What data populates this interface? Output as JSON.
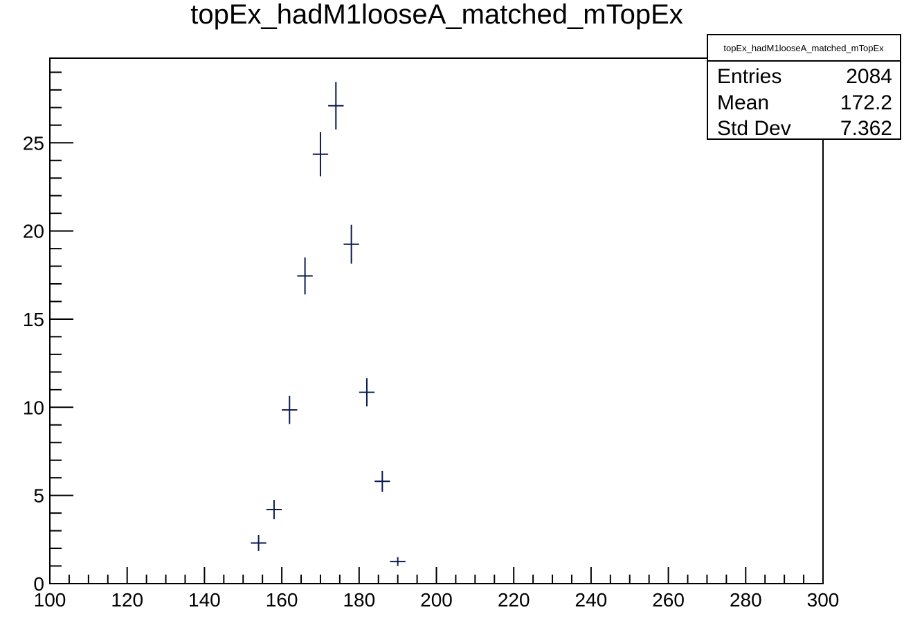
{
  "chart_data": {
    "type": "scatter",
    "title": "topEx_hadM1looseA_matched_mTopEx",
    "xlabel": "",
    "ylabel": "",
    "xlim": [
      100,
      300
    ],
    "ylim": [
      0,
      29.8
    ],
    "x_major_ticks": [
      100,
      120,
      140,
      160,
      180,
      200,
      220,
      240,
      260,
      280,
      300
    ],
    "x_tick_labels": [
      "100",
      "120",
      "140",
      "160",
      "180",
      "200",
      "220",
      "240",
      "260",
      "280",
      "300"
    ],
    "x_minor_step": 5,
    "y_major_ticks": [
      0,
      5,
      10,
      15,
      20,
      25
    ],
    "y_tick_labels": [
      "0",
      "5",
      "10",
      "15",
      "20",
      "25"
    ],
    "y_minor_step": 1,
    "bin_width": 4,
    "grid": false,
    "marker_color": "#0b1a4f",
    "series": [
      {
        "x": [
          154,
          158,
          162,
          166,
          170,
          174,
          178,
          182,
          186,
          190
        ],
        "y": [
          2.3,
          4.2,
          9.85,
          17.45,
          24.35,
          27.1,
          19.25,
          10.85,
          5.8,
          1.25
        ],
        "yerr": [
          0.45,
          0.55,
          0.8,
          1.05,
          1.25,
          1.35,
          1.1,
          0.8,
          0.6,
          0.25
        ]
      }
    ],
    "stats_box": {
      "title": "topEx_hadM1looseA_matched_mTopEx",
      "placement": "top-right",
      "rows": [
        {
          "label": "Entries",
          "value": "2084"
        },
        {
          "label": "Mean",
          "value": "172.2"
        },
        {
          "label": "Std Dev",
          "value": "7.362"
        }
      ]
    }
  }
}
